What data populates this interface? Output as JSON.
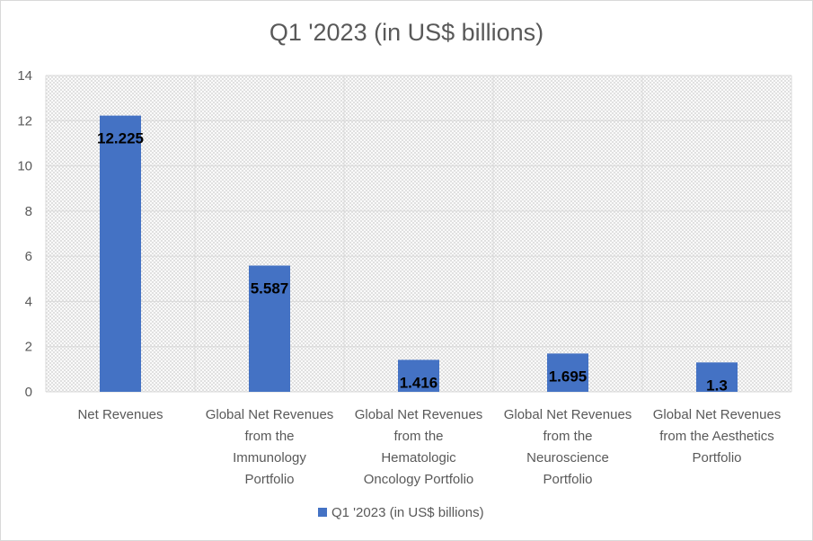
{
  "chart_data": {
    "type": "bar",
    "title": "Q1 '2023 (in US$ billions)",
    "categories": [
      [
        "Net Revenues"
      ],
      [
        "Global Net Revenues",
        "from the",
        "Immunology",
        "Portfolio"
      ],
      [
        "Global Net Revenues",
        "from the",
        "Hematologic",
        "Oncology Portfolio"
      ],
      [
        "Global Net Revenues",
        "from the",
        "Neuroscience",
        "Portfolio"
      ],
      [
        "Global Net Revenues",
        "from the Aesthetics",
        "Portfolio"
      ]
    ],
    "series": [
      {
        "name": "Q1 '2023 (in US$ billions)",
        "values": [
          12.225,
          5.587,
          1.416,
          1.695,
          1.3
        ],
        "labels": [
          "12.225",
          "5.587",
          "1.416",
          "1.695",
          "1.3"
        ],
        "color": "#4472c4"
      }
    ],
    "ylim": [
      0,
      14
    ],
    "yticks": [
      0,
      2,
      4,
      6,
      8,
      10,
      12,
      14
    ],
    "grid": true,
    "legend": "bottom"
  }
}
